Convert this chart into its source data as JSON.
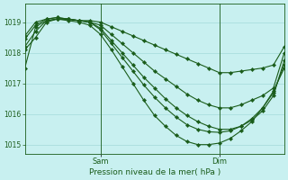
{
  "title": "Pression niveau de la mer( hPa )",
  "background_color": "#c8f0f0",
  "grid_color": "#aadddd",
  "line_color": "#1a5c1a",
  "ylim": [
    1014.7,
    1019.6
  ],
  "xlim": [
    0,
    48
  ],
  "sam_x": 14,
  "dim_x": 36,
  "lines": [
    {
      "x": [
        0,
        2,
        4,
        6,
        8,
        10,
        12,
        14,
        16,
        18,
        20,
        22,
        24,
        26,
        28,
        30,
        32,
        34,
        36,
        38,
        40,
        42,
        44,
        46,
        48
      ],
      "y": [
        1018.1,
        1018.5,
        1019.0,
        1019.1,
        1019.1,
        1019.05,
        1019.05,
        1019.0,
        1018.85,
        1018.7,
        1018.55,
        1018.4,
        1018.25,
        1018.1,
        1017.95,
        1017.8,
        1017.65,
        1017.5,
        1017.35,
        1017.35,
        1017.4,
        1017.45,
        1017.5,
        1017.6,
        1018.2
      ]
    },
    {
      "x": [
        0,
        2,
        4,
        6,
        8,
        10,
        12,
        14,
        16,
        18,
        20,
        22,
        24,
        26,
        28,
        30,
        32,
        34,
        36,
        38,
        40,
        42,
        44,
        46,
        48
      ],
      "y": [
        1018.2,
        1018.7,
        1019.05,
        1019.1,
        1019.1,
        1019.05,
        1019.0,
        1018.9,
        1018.6,
        1018.3,
        1018.0,
        1017.7,
        1017.4,
        1017.15,
        1016.9,
        1016.65,
        1016.45,
        1016.3,
        1016.2,
        1016.2,
        1016.3,
        1016.45,
        1016.6,
        1016.85,
        1018.0
      ]
    },
    {
      "x": [
        0,
        2,
        4,
        6,
        8,
        10,
        12,
        14,
        16,
        18,
        20,
        22,
        24,
        26,
        28,
        30,
        32,
        34,
        36,
        38,
        40,
        42,
        44,
        46,
        48
      ],
      "y": [
        1018.45,
        1018.9,
        1019.1,
        1019.15,
        1019.1,
        1019.05,
        1019.0,
        1018.8,
        1018.4,
        1018.0,
        1017.6,
        1017.2,
        1016.85,
        1016.5,
        1016.2,
        1015.95,
        1015.75,
        1015.6,
        1015.5,
        1015.5,
        1015.6,
        1015.8,
        1016.1,
        1016.6,
        1017.75
      ]
    },
    {
      "x": [
        0,
        2,
        4,
        6,
        8,
        10,
        12,
        14,
        16,
        18,
        20,
        22,
        24,
        26,
        28,
        30,
        32,
        34,
        36,
        38,
        40,
        42,
        44,
        46,
        48
      ],
      "y": [
        1018.55,
        1019.0,
        1019.1,
        1019.15,
        1019.1,
        1019.05,
        1019.0,
        1018.75,
        1018.3,
        1017.85,
        1017.4,
        1016.95,
        1016.55,
        1016.2,
        1015.9,
        1015.65,
        1015.5,
        1015.42,
        1015.4,
        1015.45,
        1015.6,
        1015.85,
        1016.2,
        1016.7,
        1017.6
      ]
    },
    {
      "x": [
        0,
        2,
        4,
        6,
        8,
        10,
        12,
        14,
        16,
        18,
        20,
        22,
        24,
        26,
        28,
        30,
        32,
        34,
        36,
        38,
        40,
        42,
        44,
        46,
        48
      ],
      "y": [
        1017.5,
        1018.85,
        1019.05,
        1019.1,
        1019.05,
        1019.0,
        1018.9,
        1018.6,
        1018.1,
        1017.55,
        1017.0,
        1016.45,
        1015.95,
        1015.6,
        1015.3,
        1015.1,
        1015.0,
        1015.0,
        1015.05,
        1015.2,
        1015.45,
        1015.75,
        1016.2,
        1016.75,
        1017.5
      ]
    }
  ]
}
